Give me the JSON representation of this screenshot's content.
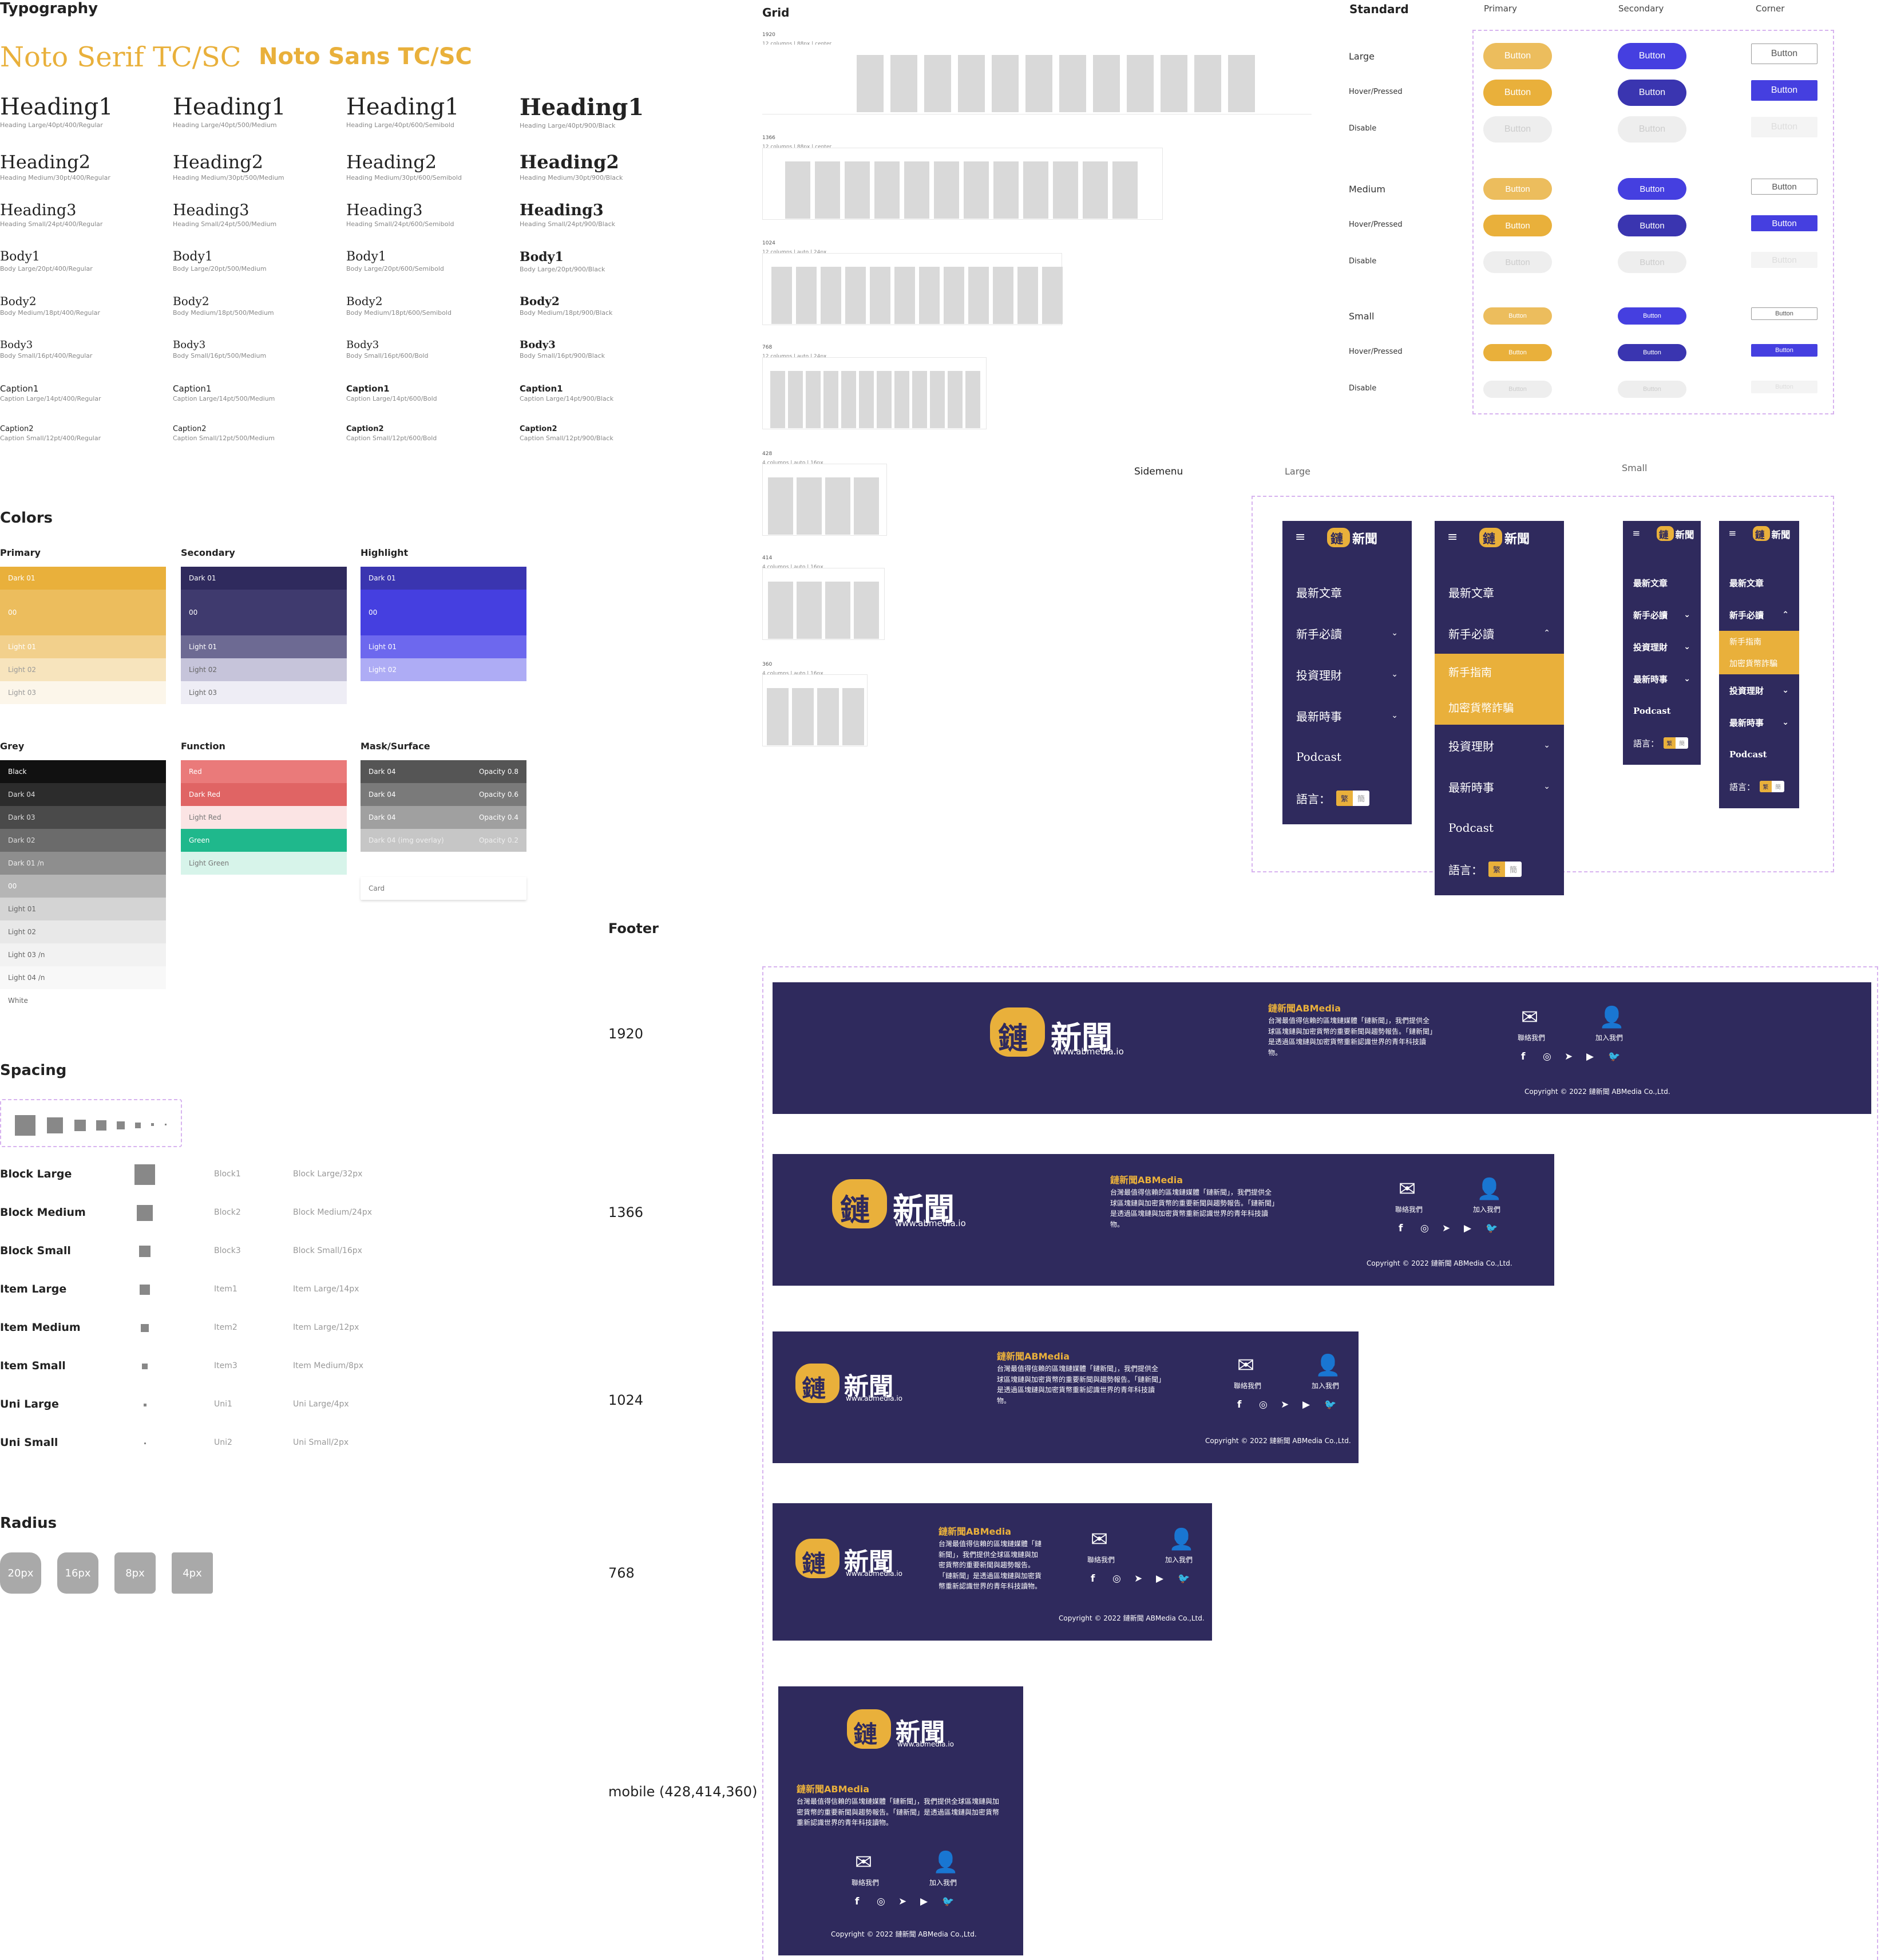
{
  "typography": {
    "title": "Typography",
    "font_serif": "Noto Serif TC/SC",
    "font_sans": "Noto Sans TC/SC",
    "columns": [
      {
        "rows": [
          {
            "name": "Heading1",
            "spec": "Heading Large/40pt/400/Regular"
          },
          {
            "name": "Heading2",
            "spec": "Heading Medium/30pt/400/Regular"
          },
          {
            "name": "Heading3",
            "spec": "Heading Small/24pt/400/Regular"
          },
          {
            "name": "Body1",
            "spec": "Body Large/20pt/400/Regular"
          },
          {
            "name": "Body2",
            "spec": "Body Medium/18pt/400/Regular"
          },
          {
            "name": "Body3",
            "spec": "Body Small/16pt/400/Regular"
          },
          {
            "name": "Caption1",
            "spec": "Caption Large/14pt/400/Regular"
          },
          {
            "name": "Caption2",
            "spec": "Caption Small/12pt/400/Regular"
          }
        ]
      },
      {
        "rows": [
          {
            "name": "Heading1",
            "spec": "Heading Large/40pt/500/Medium"
          },
          {
            "name": "Heading2",
            "spec": "Heading Medium/30pt/500/Medium"
          },
          {
            "name": "Heading3",
            "spec": "Heading Small/24pt/500/Medium"
          },
          {
            "name": "Body1",
            "spec": "Body Large/20pt/500/Medium"
          },
          {
            "name": "Body2",
            "spec": "Body Medium/18pt/500/Medium"
          },
          {
            "name": "Body3",
            "spec": "Body Small/16pt/500/Medium"
          },
          {
            "name": "Caption1",
            "spec": "Caption Large/14pt/500/Medium"
          },
          {
            "name": "Caption2",
            "spec": "Caption Small/12pt/500/Medium"
          }
        ]
      },
      {
        "rows": [
          {
            "name": "Heading1",
            "spec": "Heading Large/40pt/600/Semibold"
          },
          {
            "name": "Heading2",
            "spec": "Heading Medium/30pt/600/Semibold"
          },
          {
            "name": "Heading3",
            "spec": "Heading Small/24pt/600/Semibold"
          },
          {
            "name": "Body1",
            "spec": "Body Large/20pt/600/Semibold"
          },
          {
            "name": "Body2",
            "spec": "Body Medium/18pt/600/Semibold"
          },
          {
            "name": "Body3",
            "spec": "Body Small/16pt/600/Bold"
          },
          {
            "name": "Caption1",
            "spec": "Caption Large/14pt/600/Bold"
          },
          {
            "name": "Caption2",
            "spec": "Caption Small/12pt/600/Bold"
          }
        ]
      },
      {
        "rows": [
          {
            "name": "Heading1",
            "spec": "Heading Large/40pt/900/Black"
          },
          {
            "name": "Heading2",
            "spec": "Heading Medium/30pt/900/Black"
          },
          {
            "name": "Heading3",
            "spec": "Heading Small/24pt/900/Black"
          },
          {
            "name": "Body1",
            "spec": "Body Large/20pt/900/Black"
          },
          {
            "name": "Body2",
            "spec": "Body Medium/18pt/900/Black"
          },
          {
            "name": "Body3",
            "spec": "Body Small/16pt/900/Black"
          },
          {
            "name": "Caption1",
            "spec": "Caption Large/14pt/900/Black"
          },
          {
            "name": "Caption2",
            "spec": "Caption Small/12pt/900/Black"
          }
        ]
      }
    ]
  },
  "colors": {
    "title": "Colors",
    "primary": {
      "label": "Primary",
      "swatches": [
        {
          "name": "Dark 01",
          "color": "#e9b03b",
          "fg": "#fff"
        },
        {
          "name": "00",
          "color": "#ecbd5d",
          "fg": "#fff"
        },
        {
          "name": "Light 01",
          "color": "#f2d08c",
          "fg": "#fff"
        },
        {
          "name": "Light 02",
          "color": "#f7e4bd",
          "fg": "#999"
        },
        {
          "name": "Light 03",
          "color": "#fcf6ea",
          "fg": "#999"
        }
      ]
    },
    "secondary": {
      "label": "Secondary",
      "swatches": [
        {
          "name": "Dark 01",
          "color": "#2f2a5d",
          "fg": "#fff"
        },
        {
          "name": "00",
          "color": "#3f3a6e",
          "fg": "#fff"
        },
        {
          "name": "Light 01",
          "color": "#6d6a93",
          "fg": "#fff"
        },
        {
          "name": "Light 02",
          "color": "#c6c4da",
          "fg": "#666"
        },
        {
          "name": "Light 03",
          "color": "#eeedf5",
          "fg": "#666"
        }
      ]
    },
    "highlight": {
      "label": "Highlight",
      "swatches": [
        {
          "name": "Dark 01",
          "color": "#3a35b0",
          "fg": "#fff"
        },
        {
          "name": "00",
          "color": "#453fe0",
          "fg": "#fff"
        },
        {
          "name": "Light 01",
          "color": "#6d68ee",
          "fg": "#fff"
        },
        {
          "name": "Light 02",
          "color": "#aeacf5",
          "fg": "#fff"
        }
      ]
    },
    "grey": {
      "label": "Grey",
      "swatches": [
        {
          "name": "Black",
          "color": "#111111",
          "fg": "#fff"
        },
        {
          "name": "Dark 04",
          "color": "#2c2c2c",
          "fg": "#ddd"
        },
        {
          "name": "Dark 03",
          "color": "#4a4a4a",
          "fg": "#ddd"
        },
        {
          "name": "Dark 02",
          "color": "#6b6b6b",
          "fg": "#ddd"
        },
        {
          "name": "Dark 01 /n",
          "color": "#8e8e8e",
          "fg": "#eee"
        },
        {
          "name": "00",
          "color": "#b5b5b5",
          "fg": "#fff"
        },
        {
          "name": "Light 01",
          "color": "#d4d4d4",
          "fg": "#666"
        },
        {
          "name": "Light 02",
          "color": "#e8e8e8",
          "fg": "#666"
        },
        {
          "name": "Light 03 /n",
          "color": "#f2f2f2",
          "fg": "#666"
        },
        {
          "name": "Light 04 /n",
          "color": "#f8f8f8",
          "fg": "#666"
        },
        {
          "name": "White",
          "color": "#ffffff",
          "fg": "#666"
        }
      ]
    },
    "function": {
      "label": "Function",
      "swatches": [
        {
          "name": "Red",
          "color": "#ea7a7a",
          "fg": "#fff"
        },
        {
          "name": "Dark Red",
          "color": "#e06464",
          "fg": "#fff"
        },
        {
          "name": "Light Red",
          "color": "#fbe4e4",
          "fg": "#777"
        },
        {
          "name": "Green",
          "color": "#1fb88c",
          "fg": "#fff"
        },
        {
          "name": "Light Green",
          "color": "#d7f4ea",
          "fg": "#777"
        }
      ]
    },
    "mask": {
      "label": "Mask/Surface",
      "swatches": [
        {
          "name": "Dark 04",
          "opacity": "Opacity 0.8",
          "color": "#555555",
          "fg": "#fff"
        },
        {
          "name": "Dark 04",
          "opacity": "Opacity 0.6",
          "color": "#7a7a7a",
          "fg": "#fff"
        },
        {
          "name": "Dark 04",
          "opacity": "Opacity 0.4",
          "color": "#a0a0a0",
          "fg": "#fff"
        },
        {
          "name": "Dark 04 (img overlay)",
          "opacity": "Opacity 0.2",
          "color": "#c6c6c6",
          "fg": "#eee"
        }
      ],
      "card": "Card"
    }
  },
  "spacing": {
    "title": "Spacing",
    "rows": [
      {
        "label": "Block Large",
        "id": "Block1",
        "spec": "Block Large/32px"
      },
      {
        "label": "Block Medium",
        "id": "Block2",
        "spec": "Block Medium/24px"
      },
      {
        "label": "Block Small",
        "id": "Block3",
        "spec": "Block Small/16px"
      },
      {
        "label": "Item Large",
        "id": "Item1",
        "spec": "Item Large/14px"
      },
      {
        "label": "Item Medium",
        "id": "Item2",
        "spec": "Item Large/12px"
      },
      {
        "label": "Item Small",
        "id": "Item3",
        "spec": "Item Medium/8px"
      },
      {
        "label": "Uni Large",
        "id": "Uni1",
        "spec": "Uni Large/4px"
      },
      {
        "label": "Uni Small",
        "id": "Uni2",
        "spec": "Uni Small/2px"
      }
    ]
  },
  "radius": {
    "title": "Radius",
    "items": [
      "20px",
      "16px",
      "8px",
      "4px"
    ]
  },
  "grid": {
    "title": "Grid",
    "frames": [
      {
        "label": "1920",
        "sub": "12 columns | 88px | center"
      },
      {
        "label": "1366",
        "sub": "12 columns | 88px | center"
      },
      {
        "label": "1024",
        "sub": "12 columns | auto | 24px"
      },
      {
        "label": "768",
        "sub": "12 columns | auto | 24px"
      },
      {
        "label": "428",
        "sub": "4 columns | auto | 16px"
      },
      {
        "label": "414",
        "sub": "4 columns | auto | 16px"
      },
      {
        "label": "360",
        "sub": "4 columns | auto | 16px"
      }
    ]
  },
  "buttons": {
    "title": "Standard",
    "headers": [
      "Primary",
      "Secondary",
      "Corner"
    ],
    "label": "Button",
    "rows": [
      "Large",
      "Hover/Pressed",
      "Disable",
      "Medium",
      "Hover/Pressed",
      "Disable",
      "Small",
      "Hover/Pressed",
      "Disable"
    ]
  },
  "sidemenu": {
    "title": "Sidemenu",
    "large_label": "Large",
    "small_label": "Small",
    "logo_text": "新聞",
    "logo_char": "鏈",
    "items": [
      "最新文章",
      "新手必讀",
      "投資理財",
      "最新時事",
      "Podcast"
    ],
    "sub_items": [
      "新手指南",
      "加密貨幣詐騙"
    ],
    "lang_label": "語言：",
    "lang_trad": "繁",
    "lang_simp": "簡"
  },
  "footer": {
    "title": "Footer",
    "sizes": [
      "1920",
      "1366",
      "1024",
      "768",
      "mobile (428,414,360)"
    ],
    "logo_text": "新聞",
    "logo_char": "鏈",
    "logo_url": "www.abmedia.io",
    "brand": "鏈新聞ABMedia",
    "desc": "台灣最值得信賴的區塊鏈媒體「鏈新聞」，我們提供全球區塊鏈與加密貨幣的重要新聞與趨勢報告。「鏈新聞」是透過區塊鏈與加密貨幣重新認識世界的青年科技讀物。",
    "contact": "聯絡我們",
    "join": "加入我們",
    "copyright": "Copyright © 2022 鏈新聞 ABMedia Co.,Ltd."
  },
  "palette": {
    "gold": "#e9b03b",
    "navy": "#2f2a5d",
    "indigo": "#453fe0",
    "dash": "#d7b3ef"
  }
}
